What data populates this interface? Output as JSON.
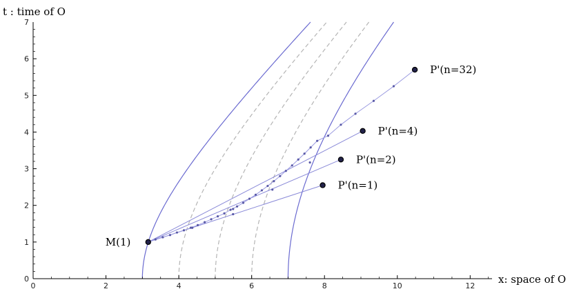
{
  "chart_data": {
    "type": "line",
    "title": "",
    "xlabel": "x: space of O",
    "ylabel": "t : time of O",
    "xlim": [
      0,
      12.6
    ],
    "ylim": [
      0,
      7
    ],
    "x_ticks": [
      0,
      2,
      4,
      6,
      8,
      10,
      12
    ],
    "y_ticks": [
      0,
      1,
      2,
      3,
      4,
      5,
      6,
      7
    ],
    "curves": [
      {
        "kind": "solid",
        "x0": 3,
        "color": "#6a6ad0"
      },
      {
        "kind": "dashed",
        "x0": 4,
        "color": "#b4b4b4"
      },
      {
        "kind": "dashed",
        "x0": 5,
        "color": "#b4b4b4"
      },
      {
        "kind": "dashed",
        "x0": 6,
        "color": "#b4b4b4"
      },
      {
        "kind": "solid",
        "x0": 7,
        "color": "#6a6ad0"
      }
    ],
    "hyperbola_xlim": 12.6,
    "origin_point": {
      "label": "M(1)",
      "x": 3.16,
      "y": 1.0
    },
    "targets": [
      {
        "label": "P'(n=1)",
        "x": 7.95,
        "y": 2.55
      },
      {
        "label": "P'(n=2)",
        "x": 8.45,
        "y": 3.25
      },
      {
        "label": "P'(n=4)",
        "x": 9.05,
        "y": 4.03
      },
      {
        "label": "P'(n=32)",
        "x": 10.48,
        "y": 5.7
      }
    ],
    "waypoints": [
      {
        "x": 4.37,
        "y": 1.39
      },
      {
        "x": 5.49,
        "y": 1.76
      },
      {
        "x": 4.37,
        "y": 1.39
      },
      {
        "x": 5.49,
        "y": 1.9
      },
      {
        "x": 6.57,
        "y": 2.43
      },
      {
        "x": 7.6,
        "y": 3.17
      }
    ],
    "chain_points": [
      {
        "x": 3.16,
        "y": 1.0
      },
      {
        "x": 3.36,
        "y": 1.07
      },
      {
        "x": 3.56,
        "y": 1.13
      },
      {
        "x": 3.76,
        "y": 1.19
      },
      {
        "x": 3.95,
        "y": 1.26
      },
      {
        "x": 4.14,
        "y": 1.32
      },
      {
        "x": 4.33,
        "y": 1.39
      },
      {
        "x": 4.52,
        "y": 1.46
      },
      {
        "x": 4.71,
        "y": 1.54
      },
      {
        "x": 4.89,
        "y": 1.62
      },
      {
        "x": 5.07,
        "y": 1.7
      },
      {
        "x": 5.25,
        "y": 1.78
      },
      {
        "x": 5.42,
        "y": 1.88
      },
      {
        "x": 5.6,
        "y": 1.97
      },
      {
        "x": 5.77,
        "y": 2.07
      },
      {
        "x": 5.94,
        "y": 2.18
      },
      {
        "x": 6.11,
        "y": 2.29
      },
      {
        "x": 6.28,
        "y": 2.41
      },
      {
        "x": 6.44,
        "y": 2.53
      },
      {
        "x": 6.61,
        "y": 2.66
      },
      {
        "x": 6.78,
        "y": 2.8
      },
      {
        "x": 6.94,
        "y": 2.94
      },
      {
        "x": 7.11,
        "y": 3.09
      },
      {
        "x": 7.28,
        "y": 3.25
      },
      {
        "x": 7.45,
        "y": 3.41
      },
      {
        "x": 7.62,
        "y": 3.58
      },
      {
        "x": 7.8,
        "y": 3.76
      },
      {
        "x": 8.1,
        "y": 3.9
      },
      {
        "x": 8.45,
        "y": 4.2
      },
      {
        "x": 8.85,
        "y": 4.5
      },
      {
        "x": 9.35,
        "y": 4.85
      },
      {
        "x": 9.9,
        "y": 5.25
      },
      {
        "x": 10.48,
        "y": 5.7
      }
    ]
  }
}
